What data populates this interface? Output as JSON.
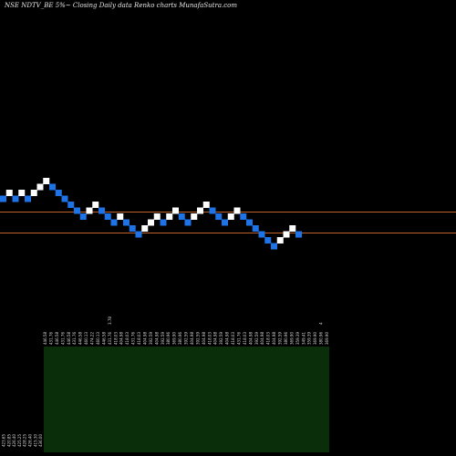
{
  "title": "NSE NDTV_BE 5%~  Closing Daily data  Renko  charts MunafaSutra.com",
  "colors": {
    "background": "#000000",
    "up_brick": "#ffffff",
    "down_brick": "#1e73e6",
    "reference_line": "#c0632a",
    "volume_panel": "#0a2e0a",
    "label_text": "#dddddd"
  },
  "chart_data": {
    "type": "renko",
    "bricks": [
      {
        "dir": "down",
        "level": 6
      },
      {
        "dir": "up",
        "level": 7
      },
      {
        "dir": "down",
        "level": 6
      },
      {
        "dir": "up",
        "level": 7
      },
      {
        "dir": "down",
        "level": 6
      },
      {
        "dir": "up",
        "level": 7
      },
      {
        "dir": "up",
        "level": 8
      },
      {
        "dir": "up",
        "level": 9
      },
      {
        "dir": "down",
        "level": 8
      },
      {
        "dir": "down",
        "level": 7
      },
      {
        "dir": "down",
        "level": 6
      },
      {
        "dir": "down",
        "level": 5
      },
      {
        "dir": "down",
        "level": 4
      },
      {
        "dir": "down",
        "level": 3
      },
      {
        "dir": "up",
        "level": 4
      },
      {
        "dir": "up",
        "level": 5
      },
      {
        "dir": "down",
        "level": 4
      },
      {
        "dir": "down",
        "level": 3
      },
      {
        "dir": "down",
        "level": 2
      },
      {
        "dir": "up",
        "level": 3
      },
      {
        "dir": "down",
        "level": 2
      },
      {
        "dir": "down",
        "level": 1
      },
      {
        "dir": "down",
        "level": 0
      },
      {
        "dir": "up",
        "level": 1
      },
      {
        "dir": "up",
        "level": 2
      },
      {
        "dir": "up",
        "level": 3
      },
      {
        "dir": "down",
        "level": 2
      },
      {
        "dir": "up",
        "level": 3
      },
      {
        "dir": "up",
        "level": 4
      },
      {
        "dir": "down",
        "level": 3
      },
      {
        "dir": "down",
        "level": 2
      },
      {
        "dir": "up",
        "level": 3
      },
      {
        "dir": "up",
        "level": 4
      },
      {
        "dir": "up",
        "level": 5
      },
      {
        "dir": "down",
        "level": 4
      },
      {
        "dir": "down",
        "level": 3
      },
      {
        "dir": "down",
        "level": 2
      },
      {
        "dir": "up",
        "level": 3
      },
      {
        "dir": "up",
        "level": 4
      },
      {
        "dir": "down",
        "level": 3
      },
      {
        "dir": "down",
        "level": 2
      },
      {
        "dir": "down",
        "level": 1
      },
      {
        "dir": "down",
        "level": 0
      },
      {
        "dir": "down",
        "level": -1
      },
      {
        "dir": "down",
        "level": -2
      },
      {
        "dir": "up",
        "level": -1
      },
      {
        "dir": "up",
        "level": 0
      },
      {
        "dir": "up",
        "level": 1
      },
      {
        "dir": "down",
        "level": 0
      }
    ],
    "reference_lines": [
      {
        "level": 3.8
      },
      {
        "level": 0.25
      }
    ],
    "price_labels": [
      "446.58",
      "431.76",
      "446.58",
      "431.76",
      "446.58",
      "431.76",
      "446.58",
      "460.13",
      "474.22",
      "460.13",
      "446.58",
      "431.76",
      "418.03",
      "404.98",
      "418.03",
      "431.76",
      "418.03",
      "404.98",
      "392.59",
      "404.98",
      "392.59",
      "380.96",
      "369.90",
      "380.96",
      "392.59",
      "404.98",
      "392.59",
      "404.98",
      "418.03",
      "404.98",
      "392.59",
      "404.98",
      "418.03",
      "431.76",
      "418.03",
      "404.98",
      "392.59",
      "404.98",
      "418.03",
      "404.98",
      "392.59",
      "380.96",
      "369.90",
      "359.39",
      "349.41",
      "359.39",
      "369.90",
      "380.96",
      "369.90"
    ],
    "marker_labels": [
      {
        "brick": 11,
        "text": "3.78"
      },
      {
        "brick": 47,
        "text": "4"
      }
    ],
    "bottom_labels": [
      "423.65",
      "420.85",
      "426.40",
      "425.25",
      "428.25",
      "426.40",
      "415.30",
      "436.00"
    ]
  }
}
